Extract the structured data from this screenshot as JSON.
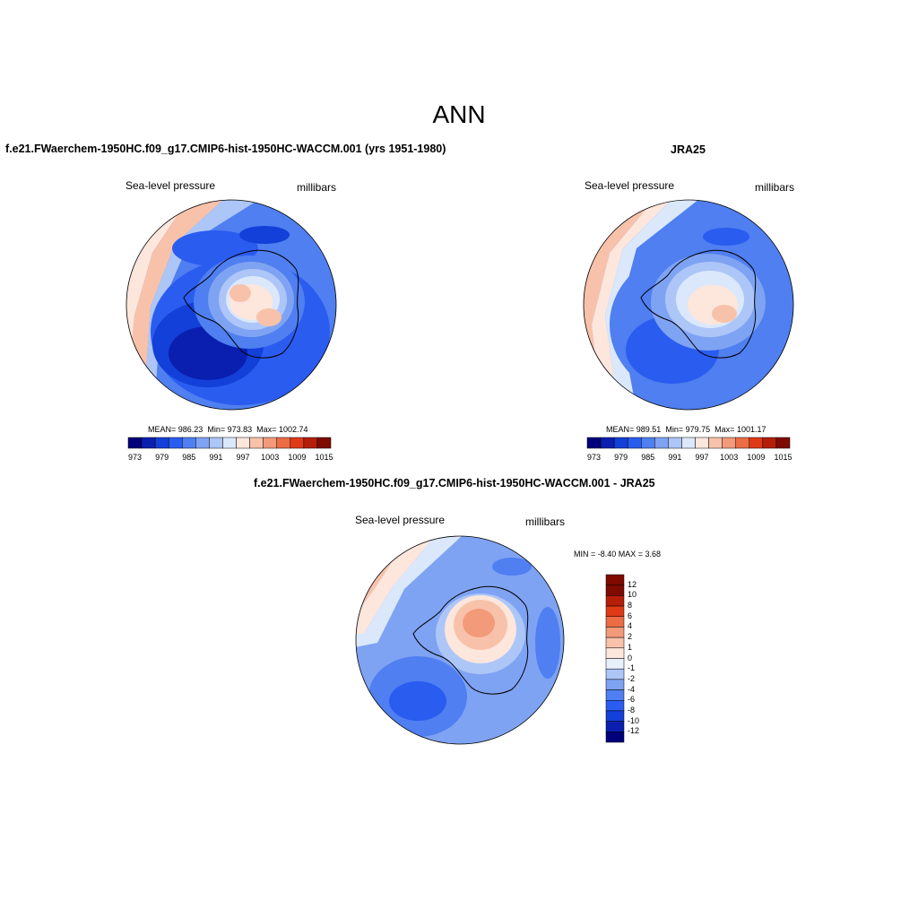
{
  "title": "ANN",
  "panels": [
    {
      "title": "f.e21.FWaerchem-1950HC.f09_g17.CMIP6-hist-1950HC-WACCM.001 (yrs 1951-1980)",
      "variable": "Sea-level pressure",
      "units": "millibars",
      "stats": {
        "mean_label": "MEAN=",
        "mean": "986.23",
        "min_label": "Min=",
        "min": "973.83",
        "max_label": "Max=",
        "max": "1002.74"
      },
      "colorbar_ticks": [
        "973",
        "979",
        "985",
        "991",
        "997",
        "1003",
        "1009",
        "1015"
      ]
    },
    {
      "title": "JRA25",
      "variable": "Sea-level pressure",
      "units": "millibars",
      "stats": {
        "mean_label": "MEAN=",
        "mean": "989.51",
        "min_label": "Min=",
        "min": "979.75",
        "max_label": "Max=",
        "max": "1001.17"
      },
      "colorbar_ticks": [
        "973",
        "979",
        "985",
        "991",
        "997",
        "1003",
        "1009",
        "1015"
      ]
    },
    {
      "title": "f.e21.FWaerchem-1950HC.f09_g17.CMIP6-hist-1950HC-WACCM.001 - JRA25",
      "variable": "Sea-level pressure",
      "units": "millibars",
      "minmax_text": "MIN =  -8.40 MAX =   3.68",
      "colorbar_ticks": [
        "12",
        "10",
        "8",
        "6",
        "4",
        "2",
        "1",
        "0",
        "-1",
        "-2",
        "-4",
        "-6",
        "-8",
        "-10",
        "-12"
      ]
    }
  ],
  "colors": {
    "palette_abs": [
      "#00007a",
      "#0a1fb0",
      "#1240d8",
      "#2a5cf0",
      "#4f7ff0",
      "#7fa3f3",
      "#adc6f8",
      "#dbe8fc",
      "#fde6dc",
      "#f8c2aa",
      "#f39a7a",
      "#ec6c44",
      "#df3a16",
      "#b51e08",
      "#7f0a00"
    ],
    "palette_diff": [
      "#7f0a00",
      "#b51e08",
      "#df3a16",
      "#ec6c44",
      "#f39a7a",
      "#f8c2aa",
      "#fde6dc",
      "#e8f0fc",
      "#adc6f8",
      "#7fa3f3",
      "#4f7ff0",
      "#2a5cf0",
      "#1240d8",
      "#0a1fb0",
      "#00007a"
    ]
  }
}
